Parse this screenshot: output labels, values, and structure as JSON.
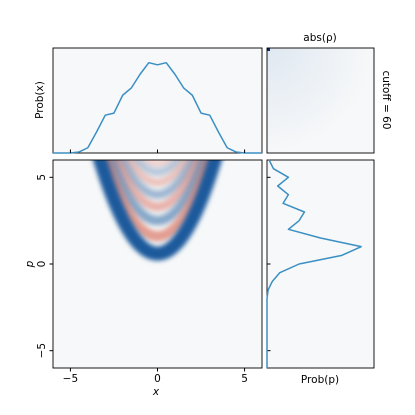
{
  "chart_data": [
    {
      "type": "line",
      "ylabel": "Prob(x)",
      "color": "#3a8fc4",
      "x": [
        -6,
        -5.5,
        -5,
        -4.5,
        -4,
        -3.5,
        -3,
        -2.5,
        -2,
        -1.5,
        -1,
        -0.5,
        0,
        0.5,
        1,
        1.5,
        2,
        2.5,
        3,
        3.5,
        4,
        4.5,
        5,
        5.5,
        6
      ],
      "values": [
        0,
        0,
        0,
        0.01,
        0.05,
        0.2,
        0.36,
        0.38,
        0.55,
        0.62,
        0.75,
        0.86,
        0.84,
        0.86,
        0.75,
        0.62,
        0.55,
        0.38,
        0.36,
        0.2,
        0.05,
        0.01,
        0,
        0,
        0
      ],
      "xlim": [
        -6,
        6
      ],
      "ylim": [
        0,
        1
      ]
    },
    {
      "type": "matrix",
      "title": "abs(ρ)",
      "annotation": "cutoff = 60"
    },
    {
      "type": "wigner",
      "xlabel": "x",
      "ylabel": "p",
      "xlim": [
        -6,
        6
      ],
      "ylim": [
        -6,
        6
      ],
      "xticks": [
        {
          "value": -5,
          "label": "−5"
        },
        0,
        5
      ],
      "yticks": [
        {
          "value": -5,
          "label": "−5"
        },
        0,
        5
      ],
      "fringes": {
        "vertices": [
          0.6,
          1.6,
          2.5,
          3.3,
          4.0,
          4.7,
          5.3,
          5.8
        ],
        "values": [
          1.0,
          -0.6,
          0.5,
          -0.45,
          0.4,
          -0.35,
          0.3,
          -0.25
        ],
        "curvature": 0.5
      }
    },
    {
      "type": "line",
      "orientation": "vertical",
      "xlabel": "Prob(p)",
      "color": "#3a8fc4",
      "x": [
        -6,
        -5.5,
        -5,
        -4.5,
        -4,
        -3.5,
        -3,
        -2.5,
        -2,
        -1.5,
        -1,
        -0.5,
        0,
        0.5,
        1,
        1.5,
        2,
        2.5,
        3,
        3.5,
        4,
        4.5,
        5,
        5.5,
        6
      ],
      "values": [
        0,
        0,
        0,
        0,
        0,
        0,
        0,
        0,
        0,
        0.01,
        0.05,
        0.12,
        0.3,
        0.7,
        0.88,
        0.5,
        0.2,
        0.3,
        0.35,
        0.15,
        0.2,
        0.1,
        0.2,
        0.06,
        0.02
      ],
      "xlim": [
        -6,
        6
      ],
      "ylim": [
        0,
        1
      ]
    }
  ]
}
